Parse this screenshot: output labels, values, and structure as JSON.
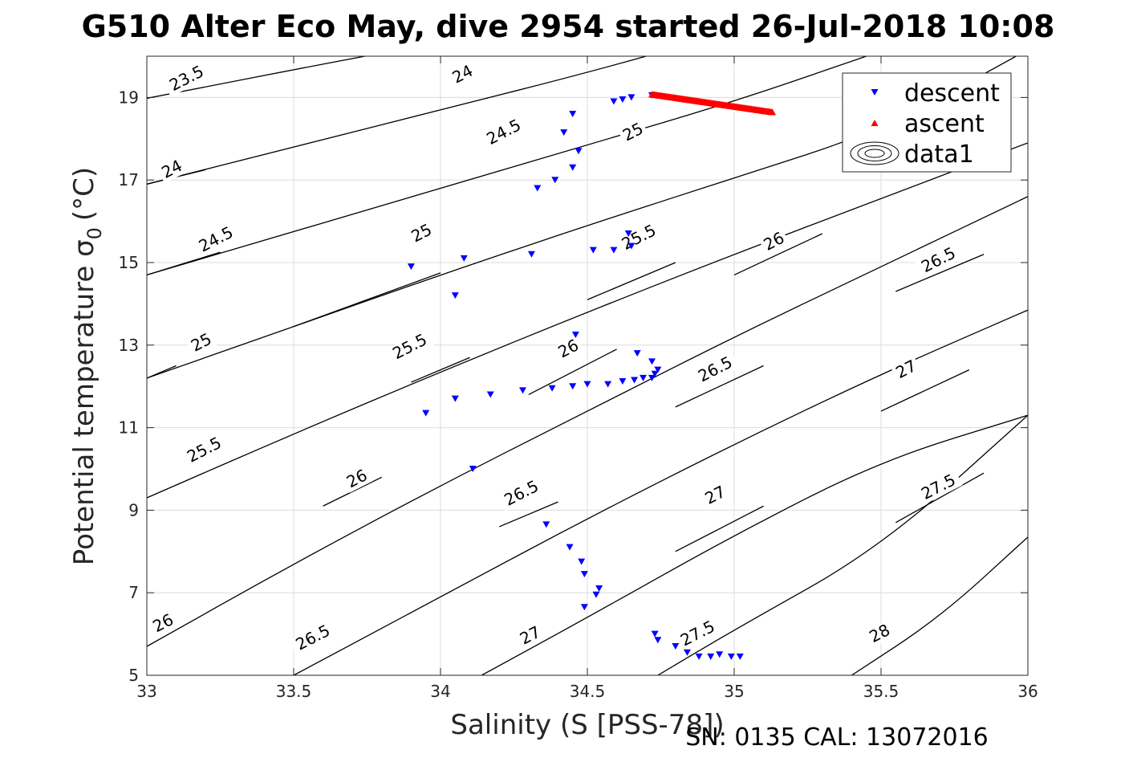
{
  "chart_data": {
    "type": "scatter",
    "title": "G510 Alter Eco May, dive 2954 started 26-Jul-2018 10:08",
    "xlabel": "Salinity (S [PSS-78])",
    "ylabel": "Potential temperature σ",
    "ylabel_subscript": "0",
    "ylabel_unit": "(°C)",
    "footer": "SN: 0135  CAL: 13072016",
    "xlim": [
      33,
      36
    ],
    "ylim": [
      5,
      20
    ],
    "xticks": [
      33,
      33.5,
      34,
      34.5,
      35,
      35.5,
      36
    ],
    "xtick_labels": [
      "33",
      "33.5",
      "34",
      "34.5",
      "35",
      "35.5",
      "36"
    ],
    "yticks": [
      5,
      7,
      9,
      11,
      13,
      15,
      17,
      19
    ],
    "ytick_labels": [
      "5",
      "7",
      "9",
      "11",
      "13",
      "15",
      "17",
      "19"
    ],
    "grid": true,
    "legend_position": "top-right",
    "legend": [
      {
        "label": "descent",
        "marker": "triangle-down",
        "color": "#0000ff"
      },
      {
        "label": "ascent",
        "marker": "triangle-up",
        "color": "#ff0000"
      },
      {
        "label": "data1",
        "marker": "contour",
        "color": "#000000"
      }
    ],
    "series": [
      {
        "name": "descent",
        "marker": "triangle-down",
        "color": "#0000ff",
        "points": [
          [
            34.72,
            19.05
          ],
          [
            34.65,
            19.0
          ],
          [
            34.62,
            18.95
          ],
          [
            34.59,
            18.9
          ],
          [
            34.45,
            18.6
          ],
          [
            34.42,
            18.15
          ],
          [
            34.47,
            17.7
          ],
          [
            34.45,
            17.3
          ],
          [
            34.39,
            17.0
          ],
          [
            34.33,
            16.8
          ],
          [
            34.64,
            15.7
          ],
          [
            34.65,
            15.4
          ],
          [
            34.59,
            15.3
          ],
          [
            34.52,
            15.3
          ],
          [
            34.31,
            15.2
          ],
          [
            34.08,
            15.1
          ],
          [
            33.9,
            14.9
          ],
          [
            34.05,
            14.2
          ],
          [
            34.46,
            13.25
          ],
          [
            34.67,
            12.8
          ],
          [
            34.72,
            12.6
          ],
          [
            34.74,
            12.4
          ],
          [
            34.73,
            12.3
          ],
          [
            34.72,
            12.2
          ],
          [
            34.69,
            12.2
          ],
          [
            34.66,
            12.15
          ],
          [
            34.62,
            12.12
          ],
          [
            34.57,
            12.05
          ],
          [
            34.5,
            12.05
          ],
          [
            34.45,
            12.0
          ],
          [
            34.38,
            11.95
          ],
          [
            34.28,
            11.9
          ],
          [
            34.17,
            11.8
          ],
          [
            34.05,
            11.7
          ],
          [
            33.95,
            11.35
          ],
          [
            34.11,
            10.0
          ],
          [
            34.36,
            8.65
          ],
          [
            34.44,
            8.1
          ],
          [
            34.48,
            7.75
          ],
          [
            34.49,
            7.45
          ],
          [
            34.54,
            7.1
          ],
          [
            34.53,
            6.95
          ],
          [
            34.49,
            6.65
          ],
          [
            34.73,
            6.0
          ],
          [
            34.74,
            5.85
          ],
          [
            34.8,
            5.7
          ],
          [
            34.84,
            5.55
          ],
          [
            34.88,
            5.45
          ],
          [
            34.92,
            5.45
          ],
          [
            34.95,
            5.5
          ],
          [
            34.99,
            5.45
          ],
          [
            35.02,
            5.45
          ]
        ]
      },
      {
        "name": "ascent",
        "marker": "triangle-up",
        "color": "#ff0000",
        "line_from": [
          34.72,
          19.08
        ],
        "line_to": [
          35.13,
          18.65
        ]
      }
    ],
    "contours": [
      {
        "label": "23.5",
        "points": [
          [
            33,
            18.98
          ],
          [
            33.7,
            19.95
          ],
          [
            34.5,
            21.0
          ]
        ],
        "label_at": [
          33.14,
          19.4
        ]
      },
      {
        "label": "24",
        "points": [
          [
            33,
            16.9
          ],
          [
            33.5,
            17.8
          ],
          [
            34.0,
            18.7
          ],
          [
            34.5,
            19.6
          ],
          [
            34.95,
            20.5
          ]
        ],
        "label_at": [
          34.08,
          19.5
        ]
      },
      {
        "label": "24",
        "points": [
          [
            33,
            16.9
          ],
          [
            33.2,
            17.25
          ]
        ],
        "label_at": [
          33.09,
          17.2
        ]
      },
      {
        "label": "24.5",
        "points": [
          [
            33,
            14.7
          ],
          [
            33.5,
            15.75
          ],
          [
            34.0,
            16.8
          ],
          [
            34.5,
            17.85
          ],
          [
            35.0,
            18.9
          ],
          [
            35.45,
            20.0
          ]
        ],
        "label_at": [
          34.22,
          18.1
        ]
      },
      {
        "label": "24.5",
        "points": [
          [
            33,
            14.7
          ],
          [
            33.25,
            15.25
          ]
        ],
        "label_at": [
          33.24,
          15.5
        ]
      },
      {
        "label": "25",
        "points": [
          [
            33,
            12.2
          ],
          [
            33.5,
            13.45
          ],
          [
            34.0,
            14.7
          ],
          [
            34.5,
            15.9
          ],
          [
            35.0,
            17.05
          ],
          [
            35.5,
            18.2
          ],
          [
            35.96,
            20.0
          ]
        ],
        "label_at": [
          34.66,
          18.1
        ]
      },
      {
        "label": "25",
        "points": [
          [
            33,
            12.2
          ],
          [
            33.1,
            12.5
          ]
        ],
        "label_at": [
          33.19,
          13.0
        ]
      },
      {
        "label": "25",
        "points": [
          [
            33.5,
            13.45
          ],
          [
            34.0,
            14.75
          ]
        ],
        "label_at": [
          33.94,
          15.65
        ]
      },
      {
        "label": "25.5",
        "points": [
          [
            33,
            9.3
          ],
          [
            33.5,
            10.85
          ],
          [
            34.0,
            12.35
          ],
          [
            34.5,
            13.8
          ],
          [
            35.0,
            15.2
          ],
          [
            35.5,
            16.55
          ],
          [
            36,
            17.9
          ]
        ],
        "label_at": [
          33.2,
          10.4
        ]
      },
      {
        "label": "25.5",
        "points": [
          [
            33.9,
            12.1
          ],
          [
            34.1,
            12.7
          ]
        ],
        "label_at": [
          33.9,
          12.9
        ]
      },
      {
        "label": "25.5",
        "points": [
          [
            34.5,
            14.1
          ],
          [
            34.8,
            15.0
          ]
        ],
        "label_at": [
          34.68,
          15.55
        ]
      },
      {
        "label": "26",
        "points": [
          [
            33,
            5.7
          ],
          [
            33.5,
            7.7
          ],
          [
            34.0,
            9.6
          ],
          [
            34.5,
            11.4
          ],
          [
            35.0,
            13.2
          ],
          [
            35.5,
            14.9
          ],
          [
            36,
            16.6
          ]
        ],
        "label_at": [
          33.06,
          6.2
        ]
      },
      {
        "label": "26",
        "points": [
          [
            33.6,
            9.1
          ],
          [
            33.8,
            9.8
          ]
        ],
        "label_at": [
          33.72,
          9.7
        ]
      },
      {
        "label": "26",
        "points": [
          [
            34.3,
            11.8
          ],
          [
            34.6,
            12.9
          ]
        ],
        "label_at": [
          34.44,
          12.85
        ]
      },
      {
        "label": "26",
        "points": [
          [
            35.0,
            14.7
          ],
          [
            35.3,
            15.7
          ]
        ],
        "label_at": [
          35.14,
          15.45
        ]
      },
      {
        "label": "26.5",
        "points": [
          [
            33.5,
            5.0
          ],
          [
            34.0,
            6.9
          ],
          [
            34.5,
            8.8
          ],
          [
            35.0,
            10.6
          ],
          [
            35.5,
            12.3
          ],
          [
            36,
            13.85
          ]
        ],
        "label_at": [
          33.57,
          5.85
        ]
      },
      {
        "label": "26.5",
        "points": [
          [
            34.2,
            8.6
          ],
          [
            34.4,
            9.2
          ]
        ],
        "label_at": [
          34.28,
          9.35
        ]
      },
      {
        "label": "26.5",
        "points": [
          [
            34.8,
            11.5
          ],
          [
            35.1,
            12.5
          ]
        ],
        "label_at": [
          34.94,
          12.35
        ]
      },
      {
        "label": "26.5",
        "points": [
          [
            35.55,
            14.3
          ],
          [
            35.85,
            15.2
          ]
        ],
        "label_at": [
          35.7,
          15.0
        ]
      },
      {
        "label": "27",
        "points": [
          [
            34.14,
            5.0
          ],
          [
            34.5,
            6.4
          ],
          [
            35.0,
            8.4
          ],
          [
            35.5,
            10.2
          ],
          [
            36,
            11.3
          ]
        ],
        "label_at": [
          34.31,
          5.9
        ]
      },
      {
        "label": "27",
        "points": [
          [
            34.8,
            8.0
          ],
          [
            35.1,
            9.1
          ]
        ],
        "label_at": [
          34.94,
          9.3
        ]
      },
      {
        "label": "27",
        "points": [
          [
            35.5,
            11.4
          ],
          [
            35.8,
            12.4
          ]
        ],
        "label_at": [
          35.59,
          12.35
        ]
      },
      {
        "label": "27.5",
        "points": [
          [
            34.74,
            5.0
          ],
          [
            35.0,
            6.1
          ],
          [
            35.5,
            8.1
          ],
          [
            36,
            11.3
          ]
        ],
        "label_at": [
          34.88,
          5.95
        ]
      },
      {
        "label": "27.5",
        "points": [
          [
            35.55,
            8.7
          ],
          [
            35.85,
            9.9
          ]
        ],
        "label_at": [
          35.7,
          9.5
        ]
      },
      {
        "label": "28",
        "points": [
          [
            35.4,
            5.0
          ],
          [
            35.7,
            6.4
          ],
          [
            36,
            8.35
          ]
        ],
        "label_at": [
          35.5,
          5.95
        ]
      }
    ]
  }
}
